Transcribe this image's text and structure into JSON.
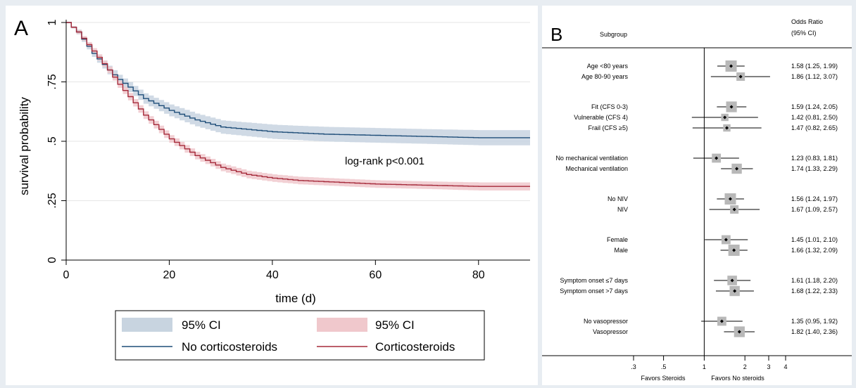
{
  "chart_data": [
    {
      "panel_label": "A",
      "type": "line",
      "xlabel": "time (d)",
      "ylabel": "survival probability",
      "xlim": [
        0,
        90
      ],
      "ylim": [
        0,
        1
      ],
      "x_ticks": [
        "0",
        "20",
        "40",
        "60",
        "80"
      ],
      "y_ticks": [
        "0",
        ".25",
        ".5",
        ".75",
        "1"
      ],
      "annotation": "log-rank p<0.001",
      "legend_position": "bottom",
      "legend": {
        "ci_no": "95% CI",
        "ci_cs": "95% CI",
        "line_no": "No corticosteroids",
        "line_cs": "Corticosteroids"
      },
      "colors": {
        "no_line": "#1f4e79",
        "no_band": "#c8d4e0",
        "cs_line": "#a52a3a",
        "cs_band": "#f0c8cc"
      },
      "series": [
        {
          "name": "No corticosteroids",
          "x": [
            0,
            2,
            5,
            8,
            10,
            15,
            20,
            25,
            30,
            35,
            40,
            45,
            50,
            60,
            70,
            80,
            90
          ],
          "y": [
            1.0,
            0.96,
            0.87,
            0.8,
            0.76,
            0.68,
            0.63,
            0.59,
            0.56,
            0.55,
            0.54,
            0.535,
            0.53,
            0.525,
            0.52,
            0.515,
            0.515
          ],
          "ci_half": [
            0.0,
            0.01,
            0.015,
            0.018,
            0.02,
            0.022,
            0.025,
            0.027,
            0.028,
            0.029,
            0.03,
            0.03,
            0.031,
            0.031,
            0.031,
            0.032,
            0.032
          ]
        },
        {
          "name": "Corticosteroids",
          "x": [
            0,
            2,
            5,
            8,
            10,
            15,
            20,
            25,
            30,
            35,
            40,
            45,
            50,
            60,
            70,
            80,
            90
          ],
          "y": [
            1.0,
            0.96,
            0.88,
            0.8,
            0.74,
            0.61,
            0.51,
            0.44,
            0.39,
            0.36,
            0.345,
            0.335,
            0.33,
            0.32,
            0.315,
            0.31,
            0.31
          ],
          "ci_half": [
            0.0,
            0.008,
            0.012,
            0.014,
            0.015,
            0.016,
            0.016,
            0.016,
            0.016,
            0.016,
            0.016,
            0.016,
            0.016,
            0.016,
            0.016,
            0.017,
            0.017
          ]
        }
      ]
    },
    {
      "panel_label": "B",
      "type": "scatter",
      "header_subgroup": "Subgroup",
      "header_or_line1": "Odds Ratio",
      "header_or_line2": "(95% CI)",
      "x_scale": "log",
      "xlim": [
        0.3,
        4
      ],
      "x_ticks": [
        {
          "v": 0.3,
          "label": ".3"
        },
        {
          "v": 0.5,
          "label": ".5"
        },
        {
          "v": 1,
          "label": "1"
        },
        {
          "v": 2,
          "label": "2"
        },
        {
          "v": 3,
          "label": "3"
        },
        {
          "v": 4,
          "label": "4"
        }
      ],
      "favors_left": "Favors Steroids",
      "favors_right": "Favors No steroids",
      "rows": [
        {
          "label": "Age <80 years",
          "or": 1.58,
          "lo": 1.25,
          "hi": 1.99,
          "text": "1.58 (1.25, 1.99)",
          "w": 1.0
        },
        {
          "label": "Age 80-90 years",
          "or": 1.86,
          "lo": 1.12,
          "hi": 3.07,
          "text": "1.86 (1.12, 3.07)",
          "w": 0.5
        },
        {
          "label": "Fit (CFS 0-3)",
          "or": 1.59,
          "lo": 1.24,
          "hi": 2.05,
          "text": "1.59 (1.24, 2.05)",
          "w": 0.9
        },
        {
          "label": "Vulnerable (CFS 4)",
          "or": 1.42,
          "lo": 0.81,
          "hi": 2.5,
          "text": "1.42 (0.81, 2.50)",
          "w": 0.3
        },
        {
          "label": "Frail (CFS ≥5)",
          "or": 1.47,
          "lo": 0.82,
          "hi": 2.65,
          "text": "1.47 (0.82, 2.65)",
          "w": 0.3
        },
        {
          "label": "No mechanical ventilation",
          "or": 1.23,
          "lo": 0.83,
          "hi": 1.81,
          "text": "1.23 (0.83, 1.81)",
          "w": 0.6
        },
        {
          "label": "Mechanical ventilation",
          "or": 1.74,
          "lo": 1.33,
          "hi": 2.29,
          "text": "1.74 (1.33, 2.29)",
          "w": 0.8
        },
        {
          "label": "No NIV",
          "or": 1.56,
          "lo": 1.24,
          "hi": 1.97,
          "text": "1.56 (1.24, 1.97)",
          "w": 1.0
        },
        {
          "label": "NIV",
          "or": 1.67,
          "lo": 1.09,
          "hi": 2.57,
          "text": "1.67 (1.09, 2.57)",
          "w": 0.5
        },
        {
          "label": "Female",
          "or": 1.45,
          "lo": 1.01,
          "hi": 2.1,
          "text": "1.45 (1.01, 2.10)",
          "w": 0.6
        },
        {
          "label": "Male",
          "or": 1.66,
          "lo": 1.32,
          "hi": 2.09,
          "text": "1.66 (1.32, 2.09)",
          "w": 1.0
        },
        {
          "label": "Symptom onset ≤7 days",
          "or": 1.61,
          "lo": 1.18,
          "hi": 2.2,
          "text": "1.61 (1.18, 2.20)",
          "w": 0.7
        },
        {
          "label": "Symptom onset >7 days",
          "or": 1.68,
          "lo": 1.22,
          "hi": 2.33,
          "text": "1.68 (1.22, 2.33)",
          "w": 0.8
        },
        {
          "label": "No vasopressor",
          "or": 1.35,
          "lo": 0.95,
          "hi": 1.92,
          "text": "1.35 (0.95, 1.92)",
          "w": 0.6
        },
        {
          "label": "Vasopressor",
          "or": 1.82,
          "lo": 1.4,
          "hi": 2.36,
          "text": "1.82 (1.40, 2.36)",
          "w": 0.9
        }
      ]
    }
  ]
}
